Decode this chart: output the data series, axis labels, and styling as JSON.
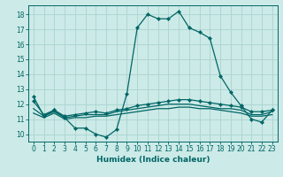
{
  "title": "",
  "xlabel": "Humidex (Indice chaleur)",
  "ylabel": "",
  "bg_color": "#cceae7",
  "grid_color": "#aad4d0",
  "line_color": "#006666",
  "xlim": [
    -0.5,
    23.5
  ],
  "ylim": [
    9.5,
    18.6
  ],
  "xticks": [
    0,
    1,
    2,
    3,
    4,
    5,
    6,
    7,
    8,
    9,
    10,
    11,
    12,
    13,
    14,
    15,
    16,
    17,
    18,
    19,
    20,
    21,
    22,
    23
  ],
  "yticks": [
    10,
    11,
    12,
    13,
    14,
    15,
    16,
    17,
    18
  ],
  "series1_x": [
    0,
    1,
    2,
    3,
    4,
    5,
    6,
    7,
    8,
    9,
    10,
    11,
    12,
    13,
    14,
    15,
    16,
    17,
    18,
    19,
    20,
    21,
    22,
    23
  ],
  "series1_y": [
    12.5,
    11.2,
    11.6,
    11.1,
    10.4,
    10.4,
    10.0,
    9.8,
    10.3,
    12.7,
    17.1,
    18.0,
    17.7,
    17.7,
    18.2,
    17.1,
    16.8,
    16.4,
    13.9,
    12.8,
    11.9,
    11.0,
    10.8,
    11.6
  ],
  "series2_x": [
    0,
    1,
    2,
    3,
    4,
    5,
    6,
    7,
    8,
    9,
    10,
    11,
    12,
    13,
    14,
    15,
    16,
    17,
    18,
    19,
    20,
    21,
    22,
    23
  ],
  "series2_y": [
    12.2,
    11.3,
    11.6,
    11.2,
    11.3,
    11.4,
    11.5,
    11.4,
    11.6,
    11.7,
    11.9,
    12.0,
    12.1,
    12.2,
    12.3,
    12.3,
    12.2,
    12.1,
    12.0,
    11.9,
    11.8,
    11.5,
    11.5,
    11.6
  ],
  "series3_x": [
    0,
    1,
    2,
    3,
    4,
    5,
    6,
    7,
    8,
    9,
    10,
    11,
    12,
    13,
    14,
    15,
    16,
    17,
    18,
    19,
    20,
    21,
    22,
    23
  ],
  "series3_y": [
    11.7,
    11.2,
    11.5,
    11.1,
    11.2,
    11.3,
    11.3,
    11.3,
    11.5,
    11.6,
    11.7,
    11.8,
    11.9,
    12.0,
    12.0,
    12.0,
    11.9,
    11.8,
    11.7,
    11.7,
    11.6,
    11.3,
    11.3,
    11.5
  ],
  "series4_x": [
    0,
    1,
    2,
    3,
    4,
    5,
    6,
    7,
    8,
    9,
    10,
    11,
    12,
    13,
    14,
    15,
    16,
    17,
    18,
    19,
    20,
    21,
    22,
    23
  ],
  "series4_y": [
    11.4,
    11.1,
    11.4,
    11.0,
    11.1,
    11.1,
    11.2,
    11.2,
    11.3,
    11.4,
    11.5,
    11.6,
    11.7,
    11.7,
    11.8,
    11.8,
    11.7,
    11.7,
    11.6,
    11.5,
    11.4,
    11.2,
    11.2,
    11.3
  ]
}
